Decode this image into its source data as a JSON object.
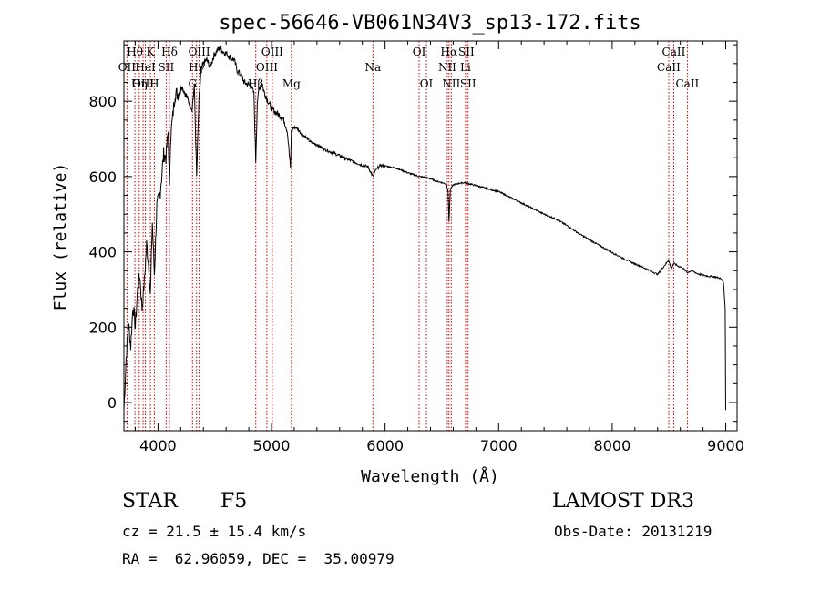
{
  "chart_data": {
    "type": "line",
    "title": "spec-56646-VB061N34V3_sp13-172.fits",
    "xlabel": "Wavelength (Å)",
    "ylabel": "Flux (relative)",
    "xlim": [
      3700,
      9100
    ],
    "ylim": [
      -75,
      960
    ],
    "xticks": [
      4000,
      5000,
      6000,
      7000,
      8000,
      9000
    ],
    "yticks": [
      0,
      200,
      400,
      600,
      800
    ],
    "grid": false,
    "series": [
      {
        "name": "spectrum",
        "x": [
          3700,
          3720,
          3740,
          3760,
          3780,
          3800,
          3820,
          3840,
          3860,
          3880,
          3900,
          3920,
          3933,
          3950,
          3968,
          3990,
          4020,
          4050,
          4070,
          4090,
          4101,
          4110,
          4130,
          4150,
          4180,
          4210,
          4240,
          4270,
          4300,
          4320,
          4340,
          4360,
          4380,
          4400,
          4430,
          4460,
          4490,
          4520,
          4550,
          4580,
          4610,
          4640,
          4670,
          4700,
          4730,
          4760,
          4790,
          4820,
          4845,
          4861,
          4875,
          4890,
          4910,
          4940,
          4970,
          5000,
          5040,
          5080,
          5110,
          5140,
          5167,
          5175,
          5190,
          5220,
          5260,
          5300,
          5350,
          5400,
          5450,
          5500,
          5550,
          5600,
          5650,
          5700,
          5750,
          5800,
          5850,
          5893,
          5920,
          5960,
          6000,
          6050,
          6100,
          6150,
          6200,
          6250,
          6300,
          6350,
          6400,
          6450,
          6500,
          6540,
          6555,
          6563,
          6575,
          6600,
          6650,
          6700,
          6750,
          6800,
          6850,
          6900,
          7000,
          7100,
          7200,
          7300,
          7400,
          7500,
          7600,
          7700,
          7800,
          7900,
          8000,
          8100,
          8200,
          8300,
          8400,
          8498,
          8520,
          8542,
          8580,
          8620,
          8662,
          8700,
          8750,
          8800,
          8850,
          8900,
          8950,
          8980,
          8995,
          9000
        ],
        "y": [
          -20,
          120,
          210,
          150,
          260,
          200,
          300,
          340,
          250,
          320,
          420,
          360,
          280,
          480,
          340,
          520,
          560,
          660,
          650,
          720,
          560,
          700,
          760,
          820,
          820,
          840,
          820,
          800,
          780,
          840,
          600,
          800,
          880,
          900,
          910,
          890,
          920,
          935,
          940,
          930,
          925,
          915,
          910,
          880,
          870,
          850,
          845,
          840,
          820,
          640,
          800,
          830,
          850,
          820,
          800,
          780,
          770,
          760,
          750,
          720,
          620,
          720,
          730,
          730,
          715,
          705,
          690,
          685,
          675,
          668,
          662,
          655,
          648,
          642,
          636,
          630,
          626,
          600,
          618,
          630,
          628,
          625,
          622,
          616,
          610,
          605,
          600,
          598,
          594,
          588,
          584,
          580,
          560,
          480,
          565,
          578,
          582,
          584,
          580,
          576,
          572,
          568,
          560,
          545,
          530,
          515,
          500,
          488,
          470,
          450,
          432,
          415,
          398,
          382,
          368,
          355,
          340,
          378,
          355,
          370,
          362,
          358,
          345,
          350,
          342,
          338,
          335,
          334,
          330,
          320,
          250,
          -20
        ]
      }
    ],
    "line_markers": [
      {
        "label": "Hθ",
        "wavelength": 3797,
        "row": 0
      },
      {
        "label": "OII",
        "wavelength": 3727,
        "row": 1
      },
      {
        "label": "OIII",
        "wavelength": 3869,
        "row": 2
      },
      {
        "label": "K",
        "wavelength": 3933,
        "row": 0
      },
      {
        "label": "HeI",
        "wavelength": 3889,
        "row": 1
      },
      {
        "label": "Hη",
        "wavelength": 3835,
        "row": 2
      },
      {
        "label": "Hδ",
        "wavelength": 4101,
        "row": 0
      },
      {
        "label": "SII",
        "wavelength": 4072,
        "row": 1
      },
      {
        "label": "H",
        "wavelength": 3968,
        "row": 2
      },
      {
        "label": "OIII",
        "wavelength": 4363,
        "row": 0
      },
      {
        "label": "Hγ",
        "wavelength": 4340,
        "row": 1
      },
      {
        "label": "G",
        "wavelength": 4304,
        "row": 2
      },
      {
        "label": "OIII",
        "wavelength": 5007,
        "row": 0
      },
      {
        "label": "OIII",
        "wavelength": 4959,
        "row": 1
      },
      {
        "label": "Hβ",
        "wavelength": 4861,
        "row": 2
      },
      {
        "label": "Mg",
        "wavelength": 5175,
        "row": 2
      },
      {
        "label": "Na",
        "wavelength": 5893,
        "row": 1
      },
      {
        "label": "OI",
        "wavelength": 6300,
        "row": 0
      },
      {
        "label": "OI",
        "wavelength": 6364,
        "row": 2
      },
      {
        "label": "Hα",
        "wavelength": 6563,
        "row": 0
      },
      {
        "label": "SII",
        "wavelength": 6716,
        "row": 0
      },
      {
        "label": "NII",
        "wavelength": 6548,
        "row": 1
      },
      {
        "label": "Li",
        "wavelength": 6708,
        "row": 1
      },
      {
        "label": "NII",
        "wavelength": 6583,
        "row": 2
      },
      {
        "label": "SII",
        "wavelength": 6731,
        "row": 2
      },
      {
        "label": "CaII",
        "wavelength": 8542,
        "row": 0
      },
      {
        "label": "CaII",
        "wavelength": 8498,
        "row": 1
      },
      {
        "label": "CaII",
        "wavelength": 8662,
        "row": 2
      }
    ],
    "marker_color": "#cc0000"
  },
  "info": {
    "object_class": "STAR",
    "subclass": "F5",
    "survey": "LAMOST DR3",
    "cz_line": "cz = 21.5 ± 15.4 km/s",
    "obs_date": "Obs-Date: 20131219",
    "coords": "RA =  62.96059, DEC =  35.00979"
  }
}
